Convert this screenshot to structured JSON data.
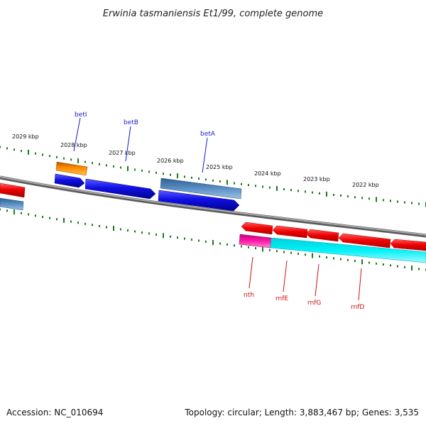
{
  "map": {
    "title": "Erwinia tasmaniensis Et1/99, complete genome",
    "accession_text": "Accession: NC_010694",
    "summary_text": "Topology: circular; Length: 3,883,467 bp; Genes: 3,535"
  },
  "scale_ticks": [
    {
      "label": "2029 kbp"
    },
    {
      "label": "2028 kbp"
    },
    {
      "label": "2027 kbp"
    },
    {
      "label": "2026 kbp"
    },
    {
      "label": "2025 kbp"
    },
    {
      "label": "2024 kbp"
    },
    {
      "label": "2023 kbp"
    },
    {
      "label": "2022 kbp"
    }
  ],
  "gene_labels": {
    "outer": [
      "betI",
      "betB",
      "betA"
    ],
    "inner": [
      "nth",
      "rnfE",
      "rnfG",
      "rnfD"
    ]
  },
  "colors": {
    "label_blue": "#1a1acc",
    "label_red": "#cc1111",
    "tick_green": "#1a7a1a",
    "backbone": "#8a8a8a",
    "cds_blue": "#1010e6",
    "cds_steel": "#4a7fb5",
    "cds_orange": "#ff8c00",
    "cds_red": "#ee0000",
    "cds_cyan": "#00eaf2",
    "cds_magenta": "#ff1aa8"
  }
}
